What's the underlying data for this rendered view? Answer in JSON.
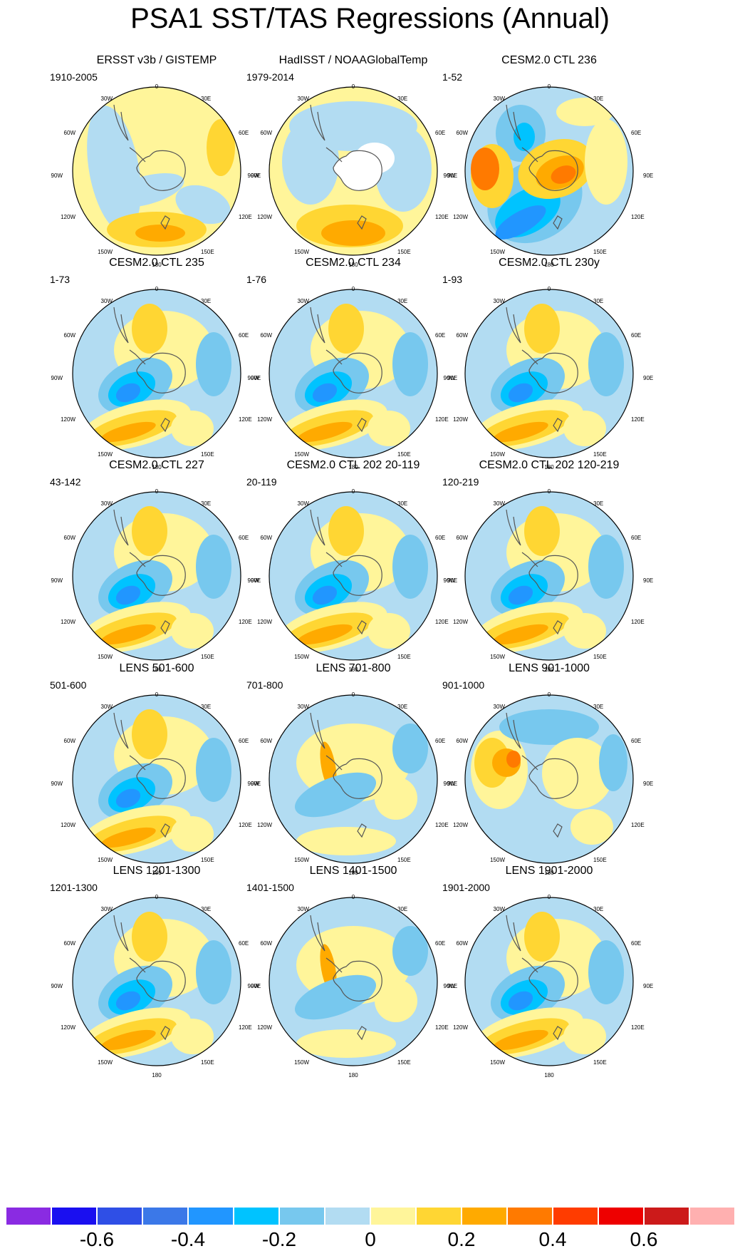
{
  "title": "PSA1 SST/TAS Regressions (Annual)",
  "lon_labels": {
    "top": "0",
    "upper_left": "30W",
    "upper_right": "30E",
    "mid_upper_left": "60W",
    "mid_upper_right": "60E",
    "left": "90W",
    "right": "90E",
    "mid_lower_left": "120W",
    "mid_lower_right": "120E",
    "lower_left": "150W",
    "lower_right": "150E",
    "bottom": "180"
  },
  "panels": [
    {
      "title": "ERSST v3b / GISTEMP",
      "period": "1910-2005",
      "pattern": "obs1"
    },
    {
      "title": "HadISST / NOAAGlobalTemp",
      "period": "1979-2014",
      "pattern": "obs2"
    },
    {
      "title": "CESM2.0 CTL 236",
      "period": "1-52",
      "pattern": "strong"
    },
    {
      "title": "CESM2.0 CTL 235",
      "period": "1-73",
      "pattern": "model"
    },
    {
      "title": "CESM2.0 CTL 234",
      "period": "1-76",
      "pattern": "model"
    },
    {
      "title": "CESM2.0 CTL 230y",
      "period": "1-93",
      "pattern": "model"
    },
    {
      "title": "CESM2.0 CTL 227",
      "period": "43-142",
      "pattern": "model"
    },
    {
      "title": "CESM2.0 CTL 202 20-119",
      "period": "20-119",
      "pattern": "model"
    },
    {
      "title": "CESM2.0 CTL 202 120-219",
      "period": "120-219",
      "pattern": "model"
    },
    {
      "title": "LENS 501-600",
      "period": "501-600",
      "pattern": "model"
    },
    {
      "title": "LENS 701-800",
      "period": "701-800",
      "pattern": "weak"
    },
    {
      "title": "LENS 901-1000",
      "period": "901-1000",
      "pattern": "alt"
    },
    {
      "title": "LENS 1201-1300",
      "period": "1201-1300",
      "pattern": "model"
    },
    {
      "title": "LENS 1401-1500",
      "period": "1401-1500",
      "pattern": "weak"
    },
    {
      "title": "LENS 1901-2000",
      "period": "1901-2000",
      "pattern": "model"
    }
  ],
  "colorbar": {
    "colors": [
      "#8a2be2",
      "#1a0ff0",
      "#2f4fe6",
      "#3b78e8",
      "#2196ff",
      "#00c3ff",
      "#77c8ee",
      "#b2dcf2",
      "#fff59a",
      "#ffd633",
      "#ffaa00",
      "#ff7a00",
      "#ff3c00",
      "#ee0000",
      "#cc1a1a",
      "#ffb0b0"
    ],
    "labels": [
      "-0.6",
      "-0.4",
      "-0.2",
      "0",
      "0.2",
      "0.4",
      "0.6"
    ]
  }
}
